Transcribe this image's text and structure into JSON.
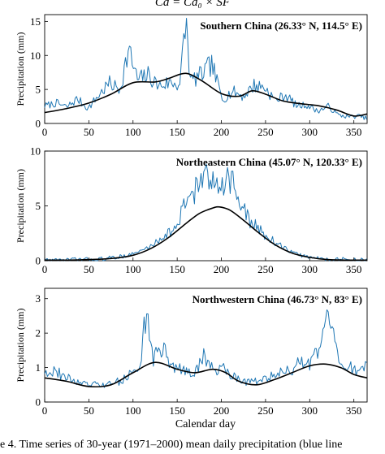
{
  "formula": "Cd = Cd₀ × SF",
  "caption": "e 4. Time series of 30-year (1971–2000) mean daily precipitation (blue line",
  "xlabel": "Calendar day",
  "colors": {
    "observed": "#1f77b4",
    "smoothed": "#000000",
    "axis": "#000000"
  },
  "chart_data": [
    {
      "type": "line",
      "title": "Southern China (26.33° N, 114.5° E)",
      "ylabel": "Precipitation (mm)",
      "xlim": [
        0,
        365
      ],
      "ylim": [
        0,
        16
      ],
      "xticks": [
        0,
        50,
        100,
        150,
        200,
        250,
        300,
        350
      ],
      "yticks": [
        0,
        5,
        10,
        15
      ],
      "grid": false,
      "series": [
        {
          "style": "noisy",
          "color": "#1f77b4",
          "x": [
            1,
            13,
            25,
            37,
            49,
            61,
            73,
            85,
            95,
            105,
            117,
            129,
            141,
            153,
            160,
            165,
            177,
            189,
            201,
            213,
            225,
            237,
            249,
            261,
            273,
            285,
            297,
            309,
            321,
            333,
            345,
            357,
            365
          ],
          "values": [
            2.6,
            3.0,
            2.4,
            3.6,
            2.2,
            4.1,
            5.9,
            5.0,
            10.8,
            6.4,
            7.1,
            5.5,
            6.0,
            5.8,
            15.3,
            6.2,
            7.1,
            8.7,
            3.6,
            4.7,
            4.0,
            5.6,
            5.3,
            3.4,
            4.2,
            2.6,
            2.7,
            1.8,
            2.5,
            1.2,
            1.0,
            1.1,
            0.7
          ]
        },
        {
          "style": "smooth",
          "color": "#000000",
          "x": [
            0,
            25,
            50,
            75,
            100,
            125,
            140,
            155,
            165,
            180,
            200,
            220,
            235,
            250,
            270,
            290,
            310,
            330,
            350,
            365
          ],
          "values": [
            1.6,
            2.2,
            3.0,
            4.3,
            6.0,
            6.1,
            6.6,
            7.3,
            7.2,
            6.1,
            4.4,
            4.0,
            4.8,
            4.3,
            3.3,
            2.9,
            2.6,
            2.0,
            1.1,
            1.4
          ]
        }
      ]
    },
    {
      "type": "line",
      "title": "Northeastern China (45.07° N, 120.33° E)",
      "ylabel": "Precipitation (mm)",
      "xlim": [
        0,
        365
      ],
      "ylim": [
        0,
        10
      ],
      "xticks": [
        0,
        50,
        100,
        150,
        200,
        250,
        300,
        350
      ],
      "yticks": [
        0,
        5,
        10
      ],
      "grid": false,
      "series": [
        {
          "style": "noisy",
          "color": "#1f77b4",
          "x": [
            1,
            20,
            40,
            60,
            80,
            100,
            120,
            135,
            150,
            160,
            170,
            180,
            188,
            196,
            204,
            212,
            220,
            230,
            240,
            255,
            270,
            285,
            300,
            320,
            340,
            365
          ],
          "values": [
            0.05,
            0.05,
            0.1,
            0.1,
            0.3,
            0.6,
            1.3,
            2.3,
            3.0,
            5.6,
            6.5,
            7.7,
            6.8,
            7.6,
            7.4,
            7.5,
            5.2,
            3.9,
            3.0,
            2.0,
            1.2,
            0.6,
            0.3,
            0.15,
            0.1,
            0.05
          ]
        },
        {
          "style": "smooth",
          "color": "#000000",
          "x": [
            0,
            25,
            50,
            75,
            100,
            120,
            140,
            160,
            175,
            190,
            198,
            210,
            225,
            240,
            260,
            280,
            300,
            320,
            345,
            365
          ],
          "values": [
            0.05,
            0.05,
            0.1,
            0.2,
            0.5,
            1.1,
            2.1,
            3.4,
            4.3,
            4.8,
            4.9,
            4.6,
            3.7,
            2.7,
            1.5,
            0.7,
            0.3,
            0.1,
            0.05,
            0.05
          ]
        }
      ]
    },
    {
      "type": "line",
      "title": "Northwestern China (46.73° N, 83° E)",
      "ylabel": "Precipitation (mm)",
      "xlim": [
        0,
        365
      ],
      "ylim": [
        0,
        3.3
      ],
      "xticks": [
        0,
        50,
        100,
        150,
        200,
        250,
        300,
        350
      ],
      "yticks": [
        0,
        1,
        2,
        3
      ],
      "grid": false,
      "series": [
        {
          "style": "noisy",
          "color": "#1f77b4",
          "x": [
            1,
            12,
            24,
            36,
            48,
            60,
            72,
            84,
            96,
            108,
            116,
            122,
            132,
            144,
            156,
            168,
            180,
            192,
            204,
            216,
            228,
            240,
            252,
            264,
            276,
            288,
            300,
            312,
            320,
            332,
            344,
            356,
            365
          ],
          "values": [
            0.9,
            0.9,
            0.7,
            0.6,
            0.5,
            0.5,
            0.5,
            0.6,
            0.8,
            1.0,
            2.9,
            1.2,
            1.6,
            1.1,
            0.9,
            0.8,
            1.3,
            0.9,
            1.0,
            0.7,
            0.6,
            0.6,
            0.7,
            0.8,
            0.9,
            1.1,
            1.1,
            1.5,
            2.6,
            1.2,
            1.0,
            0.9,
            1.2
          ]
        },
        {
          "style": "smooth",
          "color": "#000000",
          "x": [
            0,
            25,
            50,
            75,
            100,
            125,
            150,
            170,
            190,
            205,
            220,
            240,
            260,
            280,
            300,
            318,
            335,
            350,
            365
          ],
          "values": [
            0.7,
            0.6,
            0.45,
            0.5,
            0.85,
            1.15,
            0.95,
            0.85,
            0.95,
            0.85,
            0.6,
            0.5,
            0.65,
            0.85,
            1.05,
            1.1,
            1.0,
            0.8,
            0.7
          ]
        }
      ]
    }
  ]
}
